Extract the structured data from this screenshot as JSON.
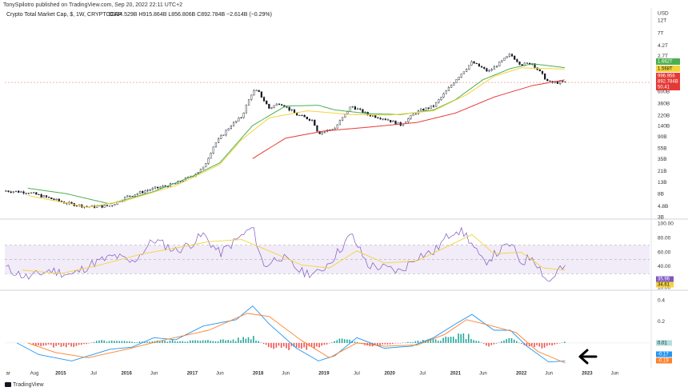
{
  "header": {
    "publisher": "TonySpilotro published on TradingView.com, Sep 20, 2022 22:11 UTC+2",
    "symbol": "Crypto Total Market Cap, $, 1W, CRYPTOCAP",
    "ohlc": "O894.529B H915.864B L856.806B C892.784B −2.614B (−0.29%)"
  },
  "branding": {
    "name": "TradingView"
  },
  "colors": {
    "candle": "#131722",
    "ma_green": "#4caf50",
    "ma_yellow": "#f5d33d",
    "ma_red": "#e53935",
    "rsi": "#7e57c2",
    "rsi_ma": "#f5d33d",
    "rsi_band": "#ede7f6",
    "macd": "#2196f3",
    "macd_signal": "#ff7f27",
    "hist_pos": "#26a69a",
    "hist_neg": "#ef5350",
    "arrow": "#000000"
  },
  "chart_data": {
    "type": "line",
    "title": "Crypto Total Market Cap, $, 1W, CRYPTOCAP",
    "x_axis": {
      "labels": [
        "ar",
        "Aug",
        "2015",
        "Jul",
        "2016",
        "Jun",
        "2017",
        "Jun",
        "2018",
        "Jun",
        "2019",
        "Jul",
        "2020",
        "Jul",
        "2021",
        "Jun",
        "2022",
        "Jun",
        "2023",
        "Jun"
      ]
    },
    "price": {
      "scale": "log",
      "unit": "USD",
      "ylim": [
        3000000000,
        12000000000000
      ],
      "tick_labels": [
        "12T",
        "7T",
        "4.2T",
        "2.7T",
        "1.6T",
        "600B",
        "360B",
        "220B",
        "140B",
        "90B",
        "55B",
        "35B",
        "21B",
        "13B",
        "8B",
        "4.8B",
        "3B"
      ],
      "badges": [
        {
          "text": "1.662T",
          "series": "ma_green"
        },
        {
          "text": "1.568T",
          "series": "ma_yellow"
        },
        {
          "text": "996.956",
          "series": "ma_red"
        },
        {
          "text": "892.784B",
          "series": "close"
        },
        {
          "text": "50.41",
          "series": "countdown"
        }
      ],
      "close_series": [
        [
          "2014-03",
          9.2
        ],
        [
          "2014-07",
          8.7
        ],
        [
          "2014-10",
          7.2
        ],
        [
          "2015-02",
          5.5
        ],
        [
          "2015-06",
          4.7
        ],
        [
          "2015-10",
          4.9
        ],
        [
          "2016-01",
          7.2
        ],
        [
          "2016-05",
          9.6
        ],
        [
          "2016-10",
          12.5
        ],
        [
          "2017-01",
          17.5
        ],
        [
          "2017-03",
          24
        ],
        [
          "2017-05",
          65
        ],
        [
          "2017-08",
          145
        ],
        [
          "2017-10",
          210
        ],
        [
          "2017-12",
          620
        ],
        [
          "2018-01",
          610
        ],
        [
          "2018-03",
          300
        ],
        [
          "2018-05",
          380
        ],
        [
          "2018-08",
          230
        ],
        [
          "2018-11",
          180
        ],
        [
          "2018-12",
          105
        ],
        [
          "2019-03",
          130
        ],
        [
          "2019-06",
          330
        ],
        [
          "2019-09",
          230
        ],
        [
          "2019-12",
          195
        ],
        [
          "2020-03",
          150
        ],
        [
          "2020-06",
          260
        ],
        [
          "2020-09",
          330
        ],
        [
          "2020-11",
          560
        ],
        [
          "2021-01",
          1000
        ],
        [
          "2021-04",
          2100
        ],
        [
          "2021-07",
          1400
        ],
        [
          "2021-11",
          2900
        ],
        [
          "2022-01",
          1900
        ],
        [
          "2022-03",
          2000
        ],
        [
          "2022-06",
          890
        ],
        [
          "2022-09",
          892
        ]
      ],
      "ma_green_series": [
        [
          "2014-07",
          10.3
        ],
        [
          "2015-02",
          8.2
        ],
        [
          "2015-10",
          5.3
        ],
        [
          "2016-06",
          9
        ],
        [
          "2017-01",
          17
        ],
        [
          "2017-06",
          30
        ],
        [
          "2017-12",
          145
        ],
        [
          "2018-06",
          330
        ],
        [
          "2018-12",
          340
        ],
        [
          "2019-03",
          280
        ],
        [
          "2019-09",
          240
        ],
        [
          "2020-03",
          230
        ],
        [
          "2020-09",
          280
        ],
        [
          "2021-01",
          430
        ],
        [
          "2021-06",
          1000
        ],
        [
          "2021-11",
          1600
        ],
        [
          "2022-03",
          1960
        ],
        [
          "2022-09",
          1662
        ]
      ],
      "ma_yellow_series": [
        [
          "2014-07",
          7.6
        ],
        [
          "2015-06",
          4.6
        ],
        [
          "2016-01",
          6.2
        ],
        [
          "2016-10",
          11.5
        ],
        [
          "2017-06",
          28
        ],
        [
          "2017-10",
          80
        ],
        [
          "2018-03",
          200
        ],
        [
          "2018-10",
          270
        ],
        [
          "2019-06",
          230
        ],
        [
          "2020-01",
          225
        ],
        [
          "2020-09",
          270
        ],
        [
          "2021-03",
          530
        ],
        [
          "2021-08",
          1150
        ],
        [
          "2022-01",
          1650
        ],
        [
          "2022-09",
          1568
        ]
      ],
      "ma_red_series": [
        [
          "2017-12",
          36
        ],
        [
          "2018-06",
          85
        ],
        [
          "2019-01",
          115
        ],
        [
          "2019-09",
          135
        ],
        [
          "2020-06",
          165
        ],
        [
          "2021-01",
          245
        ],
        [
          "2021-08",
          480
        ],
        [
          "2022-03",
          780
        ],
        [
          "2022-09",
          997
        ]
      ]
    },
    "rsi": {
      "ylim": [
        10,
        100
      ],
      "tick_labels": [
        "100.00",
        "80.00",
        "60.00",
        "40.00",
        "20.00",
        "10.00"
      ],
      "badges": [
        "35.96",
        "34.61"
      ],
      "band": [
        30,
        70
      ],
      "midline": 50,
      "series": [
        [
          "2014-03",
          38
        ],
        [
          "2014-07",
          24
        ],
        [
          "2014-11",
          35
        ],
        [
          "2015-03",
          28
        ],
        [
          "2015-07",
          45
        ],
        [
          "2015-11",
          55
        ],
        [
          "2016-02",
          45
        ],
        [
          "2016-06",
          78
        ],
        [
          "2016-10",
          62
        ],
        [
          "2017-01",
          73
        ],
        [
          "2017-03",
          85
        ],
        [
          "2017-06",
          58
        ],
        [
          "2017-09",
          77
        ],
        [
          "2017-12",
          95
        ],
        [
          "2018-02",
          40
        ],
        [
          "2018-05",
          55
        ],
        [
          "2018-09",
          32
        ],
        [
          "2018-12",
          30
        ],
        [
          "2019-03",
          55
        ],
        [
          "2019-06",
          85
        ],
        [
          "2019-09",
          42
        ],
        [
          "2019-12",
          38
        ],
        [
          "2020-03",
          33
        ],
        [
          "2020-06",
          55
        ],
        [
          "2020-09",
          60
        ],
        [
          "2020-11",
          78
        ],
        [
          "2021-01",
          93
        ],
        [
          "2021-03",
          84
        ],
        [
          "2021-06",
          45
        ],
        [
          "2021-11",
          72
        ],
        [
          "2022-01",
          45
        ],
        [
          "2022-03",
          55
        ],
        [
          "2022-06",
          17
        ],
        [
          "2022-08",
          38
        ],
        [
          "2022-09",
          36
        ]
      ],
      "ma_series": [
        [
          "2014-06",
          35
        ],
        [
          "2015-01",
          30
        ],
        [
          "2015-08",
          42
        ],
        [
          "2016-04",
          58
        ],
        [
          "2016-10",
          66
        ],
        [
          "2017-04",
          75
        ],
        [
          "2017-10",
          78
        ],
        [
          "2018-03",
          62
        ],
        [
          "2018-09",
          42
        ],
        [
          "2019-02",
          38
        ],
        [
          "2019-07",
          62
        ],
        [
          "2019-12",
          45
        ],
        [
          "2020-06",
          48
        ],
        [
          "2020-12",
          70
        ],
        [
          "2021-04",
          85
        ],
        [
          "2021-08",
          58
        ],
        [
          "2022-01",
          60
        ],
        [
          "2022-05",
          38
        ],
        [
          "2022-09",
          35
        ]
      ]
    },
    "macd": {
      "tick_labels": [
        "0.4",
        "0.2",
        "0.01",
        "-0.17",
        "-0.19"
      ],
      "badges": [
        "0.01",
        "-0.17",
        "-0.19"
      ],
      "macd_series": [
        [
          "2014-05",
          0
        ],
        [
          "2014-09",
          -0.11
        ],
        [
          "2015-03",
          -0.17
        ],
        [
          "2015-10",
          -0.06
        ],
        [
          "2016-02",
          -0.04
        ],
        [
          "2016-06",
          0.05
        ],
        [
          "2016-10",
          0.03
        ],
        [
          "2017-03",
          0.16
        ],
        [
          "2017-09",
          0.22
        ],
        [
          "2017-12",
          0.35
        ],
        [
          "2018-03",
          0.18
        ],
        [
          "2018-08",
          -0.05
        ],
        [
          "2018-12",
          -0.17
        ],
        [
          "2019-03",
          -0.12
        ],
        [
          "2019-07",
          0.05
        ],
        [
          "2019-12",
          -0.05
        ],
        [
          "2020-05",
          -0.03
        ],
        [
          "2020-09",
          0.05
        ],
        [
          "2021-01",
          0.18
        ],
        [
          "2021-04",
          0.27
        ],
        [
          "2021-08",
          0.12
        ],
        [
          "2021-11",
          0.12
        ],
        [
          "2022-02",
          -0.03
        ],
        [
          "2022-06",
          -0.18
        ],
        [
          "2022-09",
          -0.17
        ]
      ],
      "signal_series": [
        [
          "2014-07",
          0
        ],
        [
          "2014-12",
          -0.09
        ],
        [
          "2015-06",
          -0.14
        ],
        [
          "2016-01",
          -0.06
        ],
        [
          "2016-08",
          0.03
        ],
        [
          "2017-04",
          0.12
        ],
        [
          "2017-11",
          0.28
        ],
        [
          "2018-03",
          0.25
        ],
        [
          "2018-09",
          0.02
        ],
        [
          "2019-02",
          -0.14
        ],
        [
          "2019-07",
          0
        ],
        [
          "2019-12",
          -0.03
        ],
        [
          "2020-06",
          -0.02
        ],
        [
          "2020-11",
          0.08
        ],
        [
          "2021-03",
          0.22
        ],
        [
          "2021-07",
          0.17
        ],
        [
          "2021-12",
          0.1
        ],
        [
          "2022-04",
          -0.08
        ],
        [
          "2022-09",
          -0.19
        ]
      ],
      "histogram": [
        [
          "2014-08",
          -0.02
        ],
        [
          "2014-12",
          -0.03
        ],
        [
          "2015-04",
          -0.03
        ],
        [
          "2015-08",
          0.02
        ],
        [
          "2016-03",
          0.01
        ],
        [
          "2016-08",
          0.02
        ],
        [
          "2017-03",
          0.02
        ],
        [
          "2017-09",
          0.03
        ],
        [
          "2017-12",
          0.06
        ],
        [
          "2018-03",
          -0.05
        ],
        [
          "2018-07",
          -0.05
        ],
        [
          "2018-12",
          -0.04
        ],
        [
          "2019-05",
          0.05
        ],
        [
          "2019-09",
          -0.03
        ],
        [
          "2020-01",
          -0.01
        ],
        [
          "2020-07",
          0.02
        ],
        [
          "2020-12",
          0.05
        ],
        [
          "2021-03",
          0.07
        ],
        [
          "2021-07",
          -0.03
        ],
        [
          "2021-11",
          0.04
        ],
        [
          "2022-02",
          -0.03
        ],
        [
          "2022-05",
          -0.04
        ],
        [
          "2022-09",
          0.01
        ]
      ]
    }
  }
}
